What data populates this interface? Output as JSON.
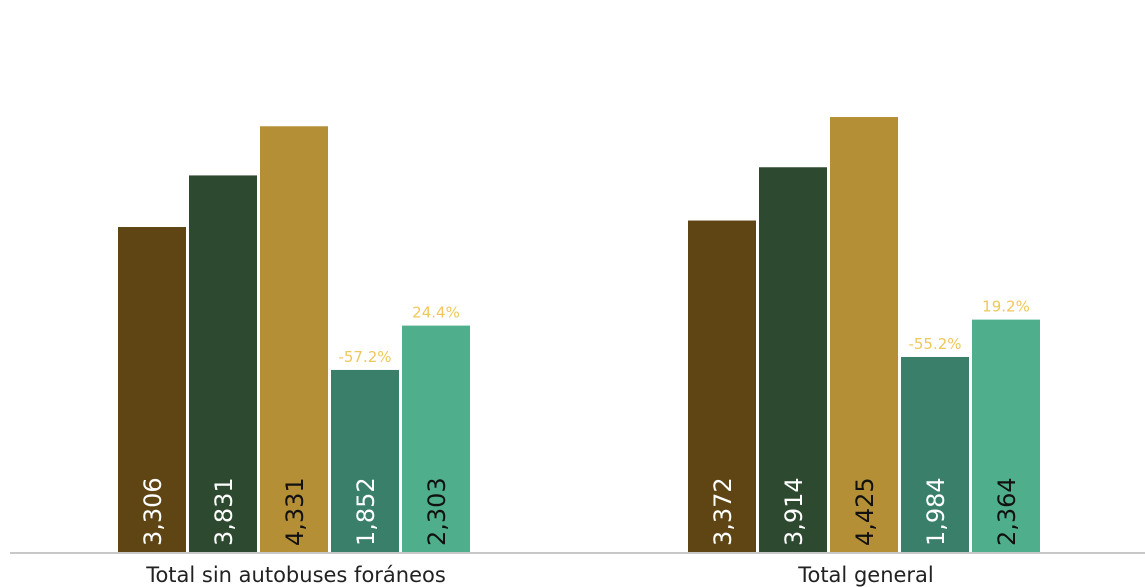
{
  "chart_data": {
    "type": "bar",
    "categories": [
      "Total sin autobuses foráneos",
      "Total general"
    ],
    "series": [
      {
        "values": [
          3306,
          3372
        ],
        "color": "#5e4513",
        "label_color": "#ffffff"
      },
      {
        "values": [
          3831,
          3914
        ],
        "color": "#2d4a30",
        "label_color": "#ffffff"
      },
      {
        "values": [
          4331,
          4425
        ],
        "color": "#b48f36",
        "label_color": "#111111"
      },
      {
        "values": [
          1852,
          1984
        ],
        "color": "#3a7f6a",
        "label_color": "#ffffff"
      },
      {
        "values": [
          2303,
          2364
        ],
        "color": "#4fae8b",
        "label_color": "#111111"
      }
    ],
    "value_labels": [
      [
        "3,306",
        "3,831",
        "4,331",
        "1,852",
        "2,303"
      ],
      [
        "3,372",
        "3,914",
        "4,425",
        "1,984",
        "2,364"
      ]
    ],
    "annotations": [
      [
        null,
        null,
        null,
        "-57.2%",
        "24.4%"
      ],
      [
        null,
        null,
        null,
        "-55.2%",
        "19.2%"
      ]
    ],
    "annotation_color": "#f0c75a",
    "ylim": [
      0,
      5000
    ],
    "grid": false,
    "legend": "none"
  }
}
